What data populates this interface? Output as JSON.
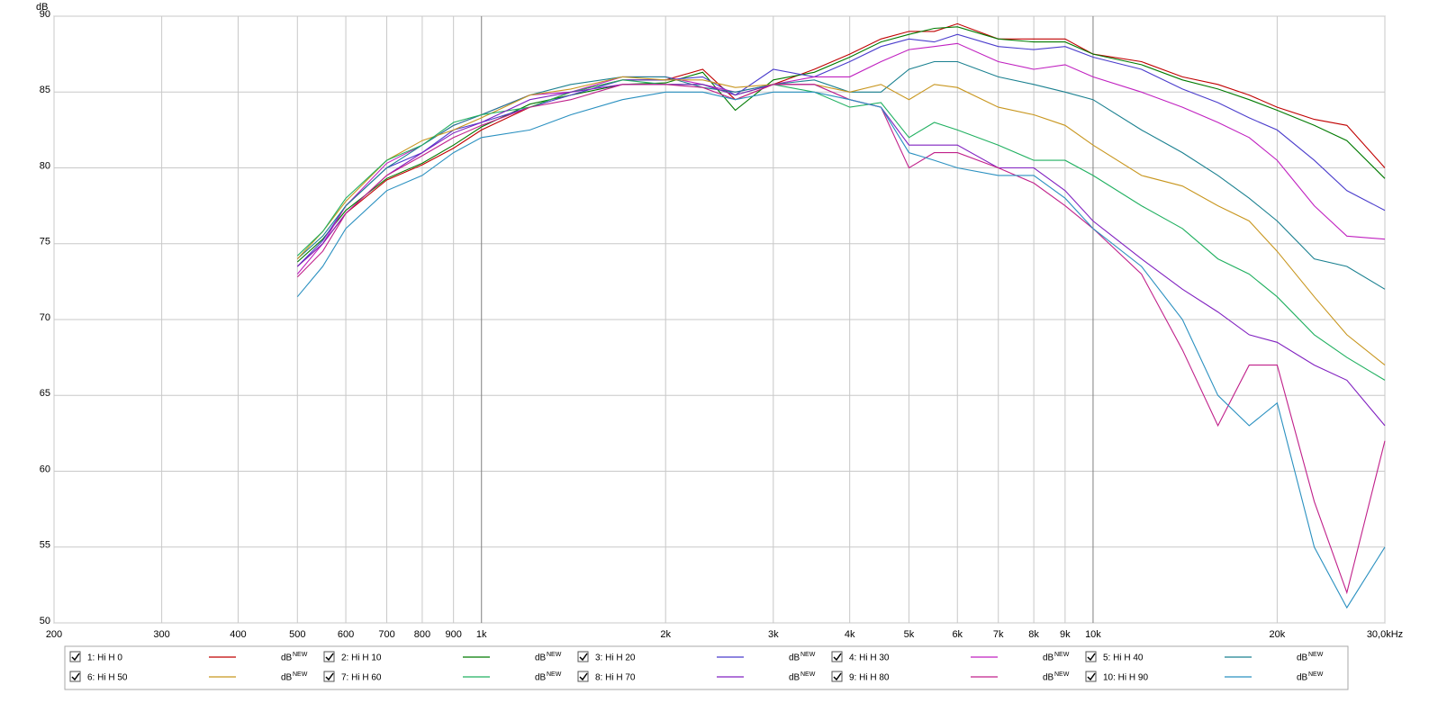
{
  "chart_data": {
    "type": "line",
    "y_label": "dB",
    "log_x": true,
    "grid": true,
    "xlim": [
      200,
      30000
    ],
    "ylim": [
      50,
      90
    ],
    "xticks": [
      200,
      300,
      400,
      500,
      600,
      700,
      800,
      900,
      {
        "value": 1000,
        "label": "1k"
      },
      {
        "value": 2000,
        "label": "2k"
      },
      {
        "value": 3000,
        "label": "3k"
      },
      {
        "value": 4000,
        "label": "4k"
      },
      {
        "value": 5000,
        "label": "5k"
      },
      {
        "value": 6000,
        "label": "6k"
      },
      {
        "value": 7000,
        "label": "7k"
      },
      {
        "value": 8000,
        "label": "8k"
      },
      {
        "value": 9000,
        "label": "9k"
      },
      {
        "value": 10000,
        "label": "10k"
      },
      {
        "value": 20000,
        "label": "20k"
      },
      {
        "value": 30000,
        "label": "30,0kHz"
      }
    ],
    "yticks": [
      50,
      55,
      60,
      65,
      70,
      75,
      80,
      85,
      90
    ],
    "legend_unit": "dB",
    "legend_badge": "NEW",
    "x": [
      500,
      550,
      600,
      700,
      800,
      900,
      1000,
      1200,
      1400,
      1700,
      2000,
      2300,
      2600,
      3000,
      3500,
      4000,
      4500,
      5000,
      5500,
      6000,
      7000,
      8000,
      9000,
      10000,
      12000,
      14000,
      16000,
      18000,
      20000,
      23000,
      26000,
      30000
    ],
    "series": [
      {
        "name": "1: Hi H 0",
        "color": "#c00000",
        "values": [
          73.5,
          75,
          77,
          79.2,
          80.2,
          81.3,
          82.5,
          84,
          85,
          85.8,
          85.8,
          86.5,
          84.5,
          85.5,
          86.5,
          87.5,
          88.5,
          89,
          89,
          89.5,
          88.5,
          88.5,
          88.5,
          87.5,
          87,
          86,
          85.5,
          84.8,
          84,
          83.2,
          82.8,
          80
        ]
      },
      {
        "name": "2: Hi H 10",
        "color": "#007a00",
        "values": [
          73.8,
          75.3,
          77.2,
          79.3,
          80.3,
          81.5,
          82.7,
          84.2,
          84.8,
          85.5,
          85.6,
          86.3,
          83.8,
          85.8,
          86.3,
          87.3,
          88.3,
          88.8,
          89.2,
          89.3,
          88.5,
          88.3,
          88.3,
          87.5,
          86.8,
          85.8,
          85.2,
          84.5,
          83.8,
          82.8,
          81.8,
          79.3
        ]
      },
      {
        "name": "3: Hi H 20",
        "color": "#4a3ccc",
        "values": [
          73.5,
          75.2,
          77.5,
          80,
          81,
          82.5,
          83,
          84,
          84.8,
          85.8,
          85.8,
          86,
          84.8,
          86.5,
          86,
          87,
          88,
          88.5,
          88.3,
          88.8,
          88,
          87.8,
          88,
          87.3,
          86.5,
          85.2,
          84.3,
          83.3,
          82.5,
          80.5,
          78.5,
          77.2
        ]
      },
      {
        "name": "4: Hi H 30",
        "color": "#c020c0",
        "values": [
          73,
          75,
          77.5,
          80.3,
          81.5,
          82.8,
          83.5,
          84.8,
          85,
          86,
          86,
          85.5,
          85,
          85.5,
          86,
          86,
          87,
          87.8,
          88,
          88.2,
          87,
          86.5,
          86.8,
          86,
          85,
          84,
          83,
          82,
          80.5,
          77.5,
          75.5,
          75.3
        ]
      },
      {
        "name": "5: Hi H 40",
        "color": "#1a8090",
        "values": [
          74,
          75.5,
          77.5,
          80,
          81.5,
          82.8,
          83.5,
          84.8,
          85.5,
          86,
          86,
          85.3,
          85,
          85.5,
          85.8,
          85,
          85,
          86.5,
          87,
          87,
          86,
          85.5,
          85,
          84.5,
          82.5,
          81,
          79.5,
          78,
          76.5,
          74,
          73.5,
          72
        ]
      },
      {
        "name": "6: Hi H 50",
        "color": "#c8961e",
        "values": [
          74,
          75.8,
          77.8,
          80.5,
          81.8,
          82.5,
          83.3,
          84.8,
          85.2,
          86,
          85.8,
          85.8,
          85.3,
          85.5,
          85.5,
          85,
          85.5,
          84.5,
          85.5,
          85.3,
          84,
          83.5,
          82.8,
          81.5,
          79.5,
          78.8,
          77.5,
          76.5,
          74.5,
          71.5,
          69,
          67
        ]
      },
      {
        "name": "7: Hi H 60",
        "color": "#20b060",
        "values": [
          74.2,
          75.8,
          78,
          80.5,
          81.5,
          83,
          83.5,
          84,
          85,
          85.8,
          85.5,
          85.5,
          84.8,
          85.5,
          85,
          84,
          84.3,
          82,
          83,
          82.5,
          81.5,
          80.5,
          80.5,
          79.5,
          77.5,
          76,
          74,
          73,
          71.5,
          69,
          67.5,
          66
        ]
      },
      {
        "name": "8: Hi H 70",
        "color": "#8020c0",
        "values": [
          73.5,
          75,
          77,
          79.5,
          81,
          82.3,
          83,
          84.5,
          85,
          85.5,
          85.5,
          85.5,
          84.8,
          85.5,
          85.5,
          84.5,
          84,
          81.5,
          81.5,
          81.5,
          80,
          80,
          78.5,
          76.5,
          74,
          72,
          70.5,
          69,
          68.5,
          67,
          66,
          63
        ]
      },
      {
        "name": "9: Hi H 80",
        "color": "#c0208a",
        "values": [
          72.8,
          74.5,
          77,
          79.5,
          80.8,
          82,
          82.8,
          84,
          84.5,
          85.5,
          85.5,
          85.3,
          84.5,
          85.5,
          85.5,
          84.5,
          84,
          80,
          81,
          81,
          80,
          79,
          77.5,
          76,
          73,
          68,
          63,
          67,
          67,
          58,
          52,
          62
        ]
      },
      {
        "name": "10: Hi H 90",
        "color": "#2a90c0",
        "values": [
          71.5,
          73.5,
          76,
          78.5,
          79.5,
          81,
          82,
          82.5,
          83.5,
          84.5,
          85,
          85,
          84.5,
          85,
          85,
          84.5,
          84,
          81,
          80.5,
          80,
          79.5,
          79.5,
          78,
          76,
          73.5,
          70,
          65,
          63,
          64.5,
          55,
          51,
          55
        ]
      }
    ]
  }
}
